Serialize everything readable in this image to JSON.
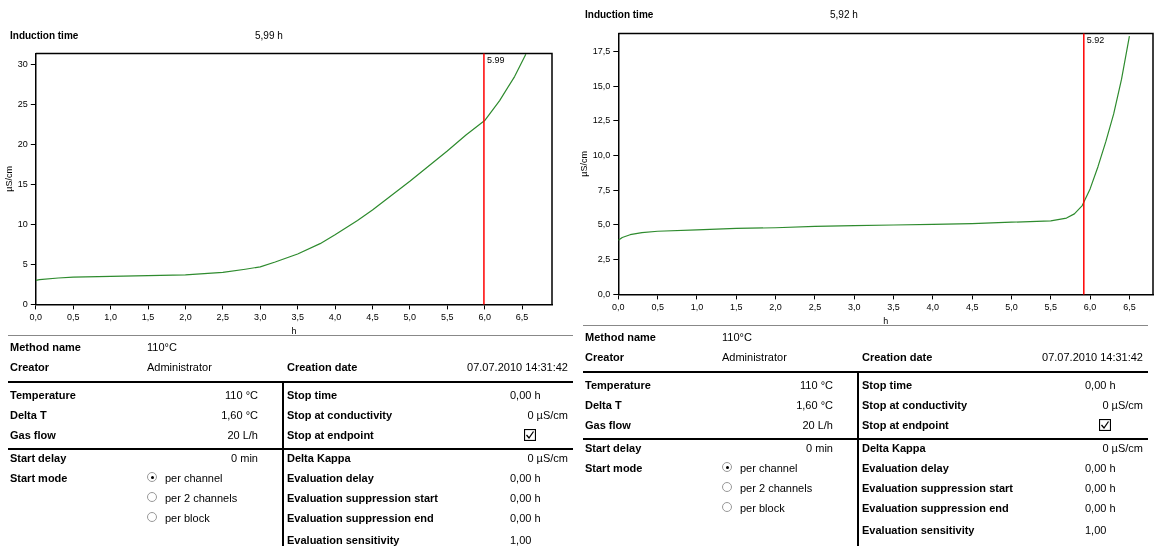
{
  "chart_data": [
    {
      "type": "line",
      "title": "Induction time",
      "subtitle": "5,99 h",
      "xlabel": "h",
      "ylabel": "µS/cm",
      "marker": "none",
      "xlim": [
        0,
        6.9
      ],
      "ylim": [
        0,
        31.4
      ],
      "xticks": [
        {
          "value": 0,
          "label": "0,0"
        },
        {
          "value": 0.5,
          "label": "0,5"
        },
        {
          "value": 1,
          "label": "1,0"
        },
        {
          "value": 1.5,
          "label": "1,5"
        },
        {
          "value": 2,
          "label": "2,0"
        },
        {
          "value": 2.5,
          "label": "2,5"
        },
        {
          "value": 3,
          "label": "3,0"
        },
        {
          "value": 3.5,
          "label": "3,5"
        },
        {
          "value": 4,
          "label": "4,0"
        },
        {
          "value": 4.5,
          "label": "4,5"
        },
        {
          "value": 5,
          "label": "5,0"
        },
        {
          "value": 5.5,
          "label": "5,5"
        },
        {
          "value": 6,
          "label": "6,0"
        },
        {
          "value": 6.5,
          "label": "6,5"
        }
      ],
      "yticks": [
        0,
        5,
        10,
        15,
        20,
        25,
        30
      ],
      "series": [
        {
          "color": "#2e8b2e",
          "x": [
            0,
            0.05,
            0.3,
            0.5,
            1.0,
            1.5,
            2.0,
            2.5,
            2.8,
            3.0,
            3.2,
            3.5,
            3.8,
            4.0,
            4.3,
            4.5,
            5.0,
            5.5,
            5.75,
            6.0,
            6.2,
            6.4,
            6.55
          ],
          "values": [
            3.0,
            3.1,
            3.3,
            3.4,
            3.5,
            3.6,
            3.7,
            4.0,
            4.4,
            4.7,
            5.3,
            6.3,
            7.6,
            8.7,
            10.5,
            11.8,
            15.4,
            19.2,
            21.2,
            23.0,
            25.5,
            28.5,
            31.3
          ]
        }
      ],
      "ref_lines": [
        {
          "axis": "x",
          "value": 5.99,
          "label": "5.99",
          "color": "#ff0000"
        }
      ]
    },
    {
      "type": "other",
      "annotations": [
        "Method name",
        "110°C",
        "Creator",
        "Administrator",
        "Creation date",
        "07.07.2010 14:31:42",
        "Temperature",
        "110 °C",
        "Delta T",
        "1,60 °C",
        "Gas flow",
        "20 L/h",
        "Stop time",
        "0,00 h",
        "Stop at conductivity",
        "0 µS/cm",
        "Stop at endpoint",
        "Start delay",
        "0 min",
        "Start mode",
        "per channel",
        "per 2 channels",
        "per block",
        "Delta Kappa",
        "0 µS/cm",
        "Evaluation delay",
        "0,00 h",
        "Evaluation suppression start",
        "0,00 h",
        "Evaluation suppression end",
        "0,00 h",
        "Evaluation sensitivity",
        "1,00"
      ]
    },
    {
      "type": "line",
      "title": "Induction time",
      "subtitle": "5,92 h",
      "xlabel": "h",
      "ylabel": "µS/cm",
      "marker": "none",
      "xlim": [
        0,
        6.8
      ],
      "ylim": [
        0,
        18.8
      ],
      "xticks": [
        {
          "value": 0,
          "label": "0,0"
        },
        {
          "value": 0.5,
          "label": "0,5"
        },
        {
          "value": 1,
          "label": "1,0"
        },
        {
          "value": 1.5,
          "label": "1,5"
        },
        {
          "value": 2,
          "label": "2,0"
        },
        {
          "value": 2.5,
          "label": "2,5"
        },
        {
          "value": 3,
          "label": "3,0"
        },
        {
          "value": 3.5,
          "label": "3,5"
        },
        {
          "value": 4,
          "label": "4,0"
        },
        {
          "value": 4.5,
          "label": "4,5"
        },
        {
          "value": 5,
          "label": "5,0"
        },
        {
          "value": 5.5,
          "label": "5,5"
        },
        {
          "value": 6,
          "label": "6,0"
        },
        {
          "value": 6.5,
          "label": "6,5"
        }
      ],
      "yticks": [
        {
          "value": 0,
          "label": "0,0"
        },
        {
          "value": 2.5,
          "label": "2,5"
        },
        {
          "value": 5,
          "label": "5,0"
        },
        {
          "value": 7.5,
          "label": "7,5"
        },
        {
          "value": 10,
          "label": "10,0"
        },
        {
          "value": 12.5,
          "label": "12,5"
        },
        {
          "value": 15,
          "label": "15,0"
        },
        {
          "value": 17.5,
          "label": "17,5"
        }
      ],
      "series": [
        {
          "color": "#2e8b2e",
          "x": [
            0,
            0.05,
            0.15,
            0.3,
            0.5,
            1.0,
            1.5,
            2.0,
            2.5,
            3.0,
            3.5,
            4.0,
            4.5,
            5.0,
            5.5,
            5.7,
            5.8,
            5.9,
            6.0,
            6.1,
            6.2,
            6.3,
            6.4,
            6.5
          ],
          "values": [
            3.9,
            4.1,
            4.3,
            4.45,
            4.55,
            4.65,
            4.75,
            4.8,
            4.9,
            4.95,
            5.0,
            5.05,
            5.1,
            5.2,
            5.3,
            5.5,
            5.8,
            6.4,
            7.6,
            9.2,
            11.0,
            13.0,
            15.5,
            18.6
          ]
        }
      ],
      "ref_lines": [
        {
          "axis": "x",
          "value": 5.92,
          "label": "5.92",
          "color": "#ff0000"
        }
      ]
    },
    {
      "type": "other",
      "annotations": [
        "Method name",
        "110°C",
        "Creator",
        "Administrator",
        "Creation date",
        "07.07.2010 14:31:42",
        "Temperature",
        "110 °C",
        "Delta T",
        "1,60 °C",
        "Gas flow",
        "20 L/h",
        "Stop time",
        "0,00 h",
        "Stop at conductivity",
        "0 µS/cm",
        "Stop at endpoint",
        "Start delay",
        "0 min",
        "Start mode",
        "per channel",
        "per 2 channels",
        "per block",
        "Delta Kappa",
        "0 µS/cm",
        "Evaluation delay",
        "0,00 h",
        "Evaluation suppression start",
        "0,00 h",
        "Evaluation suppression end",
        "0,00 h",
        "Evaluation sensitivity",
        "1,00"
      ]
    }
  ]
}
